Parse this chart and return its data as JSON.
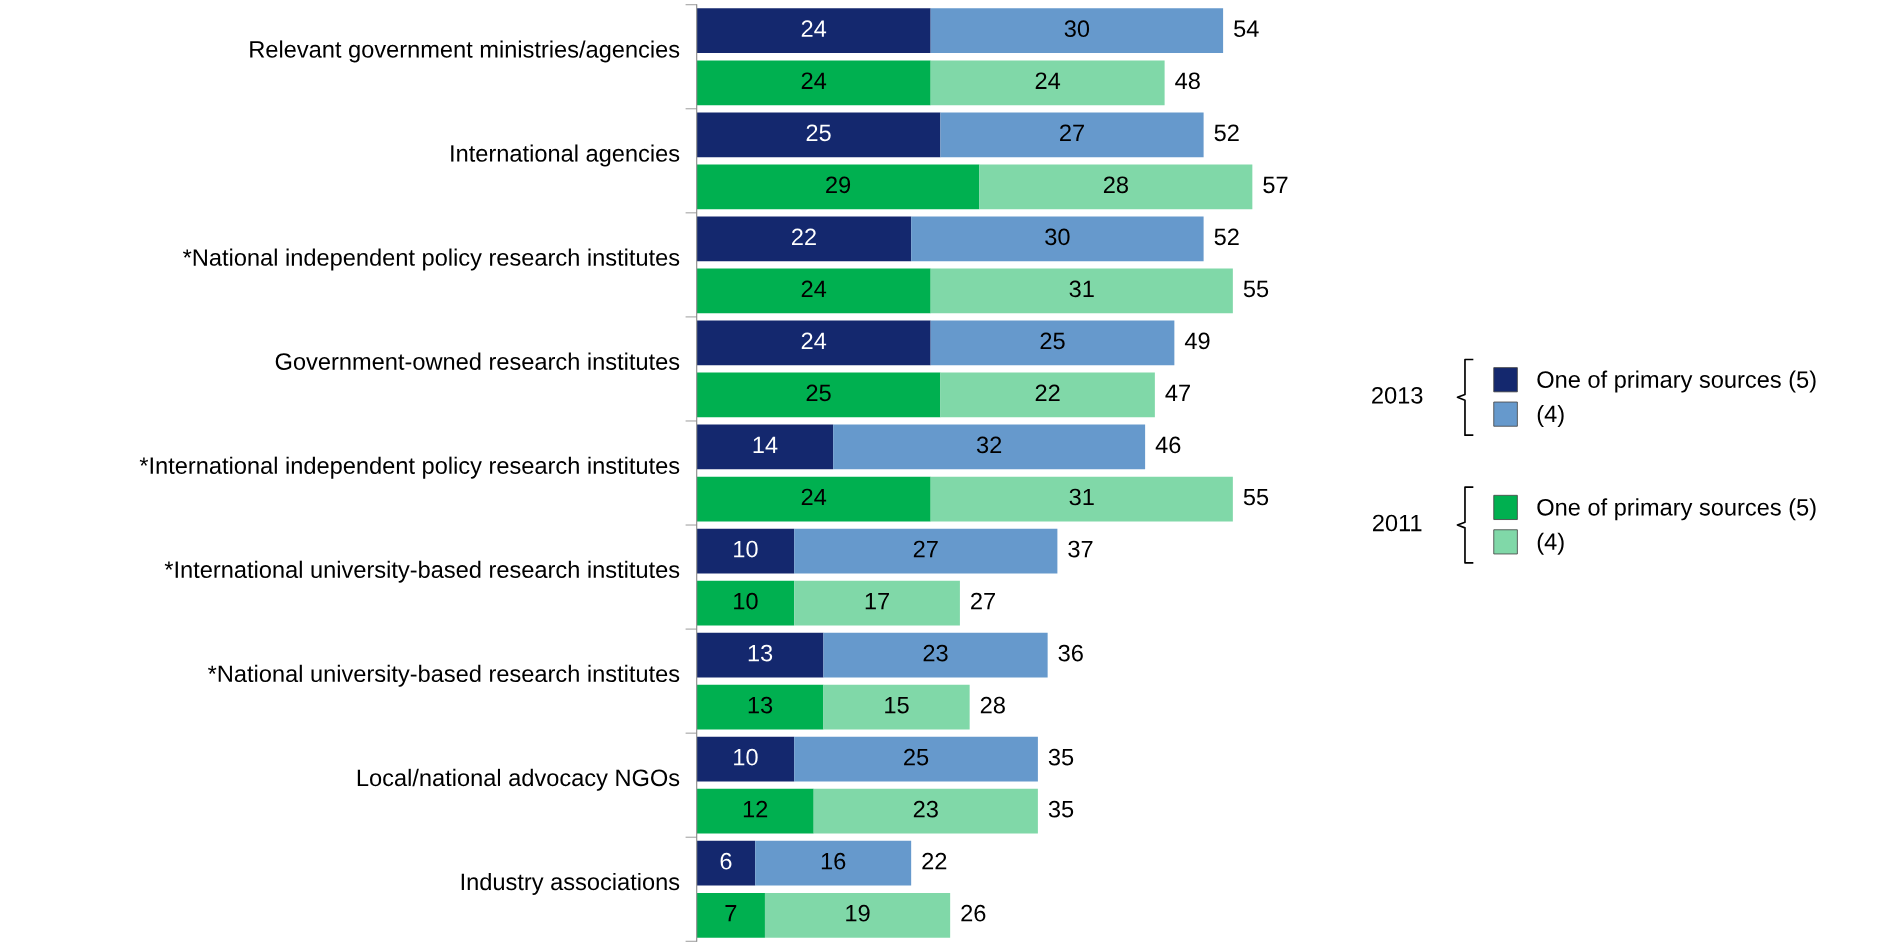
{
  "chart_data": {
    "type": "bar",
    "orientation": "horizontal",
    "stacked": true,
    "data_labels": true,
    "legend": "right",
    "grid": false,
    "categories": [
      "Relevant government ministries/agencies",
      null,
      "International agencies",
      null,
      "*National independent policy research institutes",
      null,
      "Government-owned research institutes",
      null,
      "*International independent policy research institutes",
      null,
      "*International university-based research institutes",
      null,
      "*National university-based research institutes",
      null,
      "Local/national advocacy NGOs",
      null,
      "Industry associations",
      null
    ],
    "series": [
      {
        "name": "One of primary sources (5)",
        "color": "#14286e",
        "values": [
          24,
          null,
          25,
          null,
          22,
          null,
          24,
          null,
          14,
          null,
          10,
          null,
          13,
          null,
          10,
          null,
          6,
          null
        ]
      },
      {
        "name": "(4)",
        "color": "#6699cc",
        "values": [
          30,
          null,
          27,
          null,
          30,
          null,
          25,
          null,
          32,
          null,
          27,
          null,
          23,
          null,
          25,
          null,
          16,
          null
        ]
      },
      {
        "name": "One of primary sources (5)",
        "color": "#00b050",
        "values": [
          null,
          24,
          null,
          29,
          null,
          24,
          null,
          25,
          null,
          24,
          null,
          10,
          null,
          13,
          null,
          12,
          null,
          7
        ]
      },
      {
        "name": "(4)",
        "color": "#80d8a8",
        "values": [
          null,
          24,
          null,
          28,
          null,
          31,
          null,
          22,
          null,
          31,
          null,
          17,
          null,
          15,
          null,
          23,
          null,
          19
        ]
      }
    ],
    "totals": [
      "54",
      "48",
      "52",
      "57",
      "52",
      "55",
      "49",
      "47",
      "46",
      "55",
      "37",
      "27",
      "36",
      "28",
      "35",
      "35",
      "22",
      "26"
    ],
    "annotations": [
      "2013",
      "2011"
    ]
  }
}
